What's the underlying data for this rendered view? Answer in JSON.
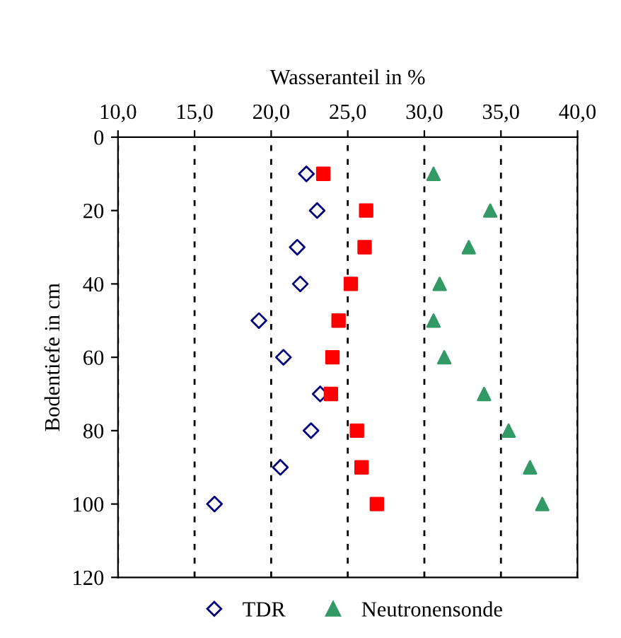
{
  "chart_data": {
    "type": "scatter",
    "xlabel": "Wasseranteil in %",
    "ylabel": "Bodentiefe in cm",
    "xlim": [
      10,
      40
    ],
    "xticks": [
      {
        "value": 10,
        "label": "10,0"
      },
      {
        "value": 15,
        "label": "15,0"
      },
      {
        "value": 20,
        "label": "20,0"
      },
      {
        "value": 25,
        "label": "25,0"
      },
      {
        "value": 30,
        "label": "30,0"
      },
      {
        "value": 35,
        "label": "35,0"
      },
      {
        "value": 40,
        "label": "40,0"
      }
    ],
    "ylim": [
      120,
      0
    ],
    "yticks": [
      0,
      20,
      40,
      60,
      80,
      100,
      120
    ],
    "grid": "x",
    "legend": "bottom",
    "series": [
      {
        "name": "TDR",
        "color": "#000080",
        "marker": "diamond",
        "x": [
          22.3,
          23.0,
          21.7,
          21.9,
          19.2,
          20.8,
          23.2,
          22.6,
          20.6,
          16.3
        ],
        "values": [
          10,
          20,
          30,
          40,
          50,
          60,
          70,
          80,
          90,
          100
        ]
      },
      {
        "color": "#ff0000",
        "marker": "square",
        "x": [
          23.4,
          26.2,
          26.1,
          25.2,
          24.4,
          24.0,
          23.9,
          25.6,
          25.9,
          26.9
        ],
        "values": [
          10,
          20,
          30,
          40,
          50,
          60,
          70,
          80,
          90,
          100
        ]
      },
      {
        "name": "Neutronensonde",
        "color": "#339966",
        "marker": "triangle",
        "x": [
          30.6,
          34.3,
          32.9,
          31.0,
          30.6,
          31.3,
          33.9,
          35.5,
          36.9,
          37.7
        ],
        "values": [
          10,
          20,
          30,
          40,
          50,
          60,
          70,
          80,
          90,
          100
        ]
      }
    ]
  }
}
